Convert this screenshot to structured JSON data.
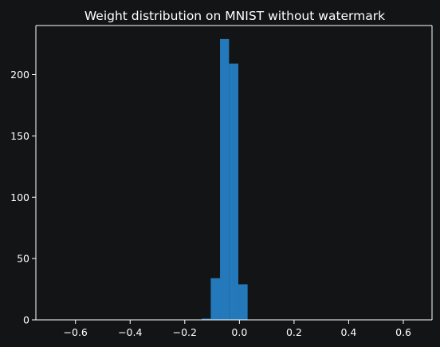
{
  "chart_data": {
    "type": "bar",
    "title": "Weight distribution on MNIST without watermark",
    "xlabel": "",
    "ylabel": "",
    "xlim": [
      -0.745,
      0.705
    ],
    "ylim": [
      0,
      240
    ],
    "xticks": [
      -0.6,
      -0.4,
      -0.2,
      0.0,
      0.2,
      0.4,
      0.6
    ],
    "xtick_labels": [
      "−0.6",
      "−0.4",
      "−0.2",
      "0.0",
      "0.2",
      "0.4",
      "0.6"
    ],
    "yticks": [
      0,
      50,
      100,
      150,
      200
    ],
    "ytick_labels": [
      "0",
      "50",
      "100",
      "150",
      "200"
    ],
    "grid": false,
    "bins": [
      {
        "x0": -0.138,
        "x1": -0.105,
        "value": 1
      },
      {
        "x0": -0.105,
        "x1": -0.071,
        "value": 34
      },
      {
        "x0": -0.071,
        "x1": -0.038,
        "value": 229
      },
      {
        "x0": -0.038,
        "x1": -0.004,
        "value": 209
      },
      {
        "x0": -0.004,
        "x1": 0.03,
        "value": 29
      }
    ],
    "colors": {
      "background": "#131416",
      "bar": "#2479bb",
      "text": "#ffffff",
      "axis": "#ffffff"
    }
  }
}
